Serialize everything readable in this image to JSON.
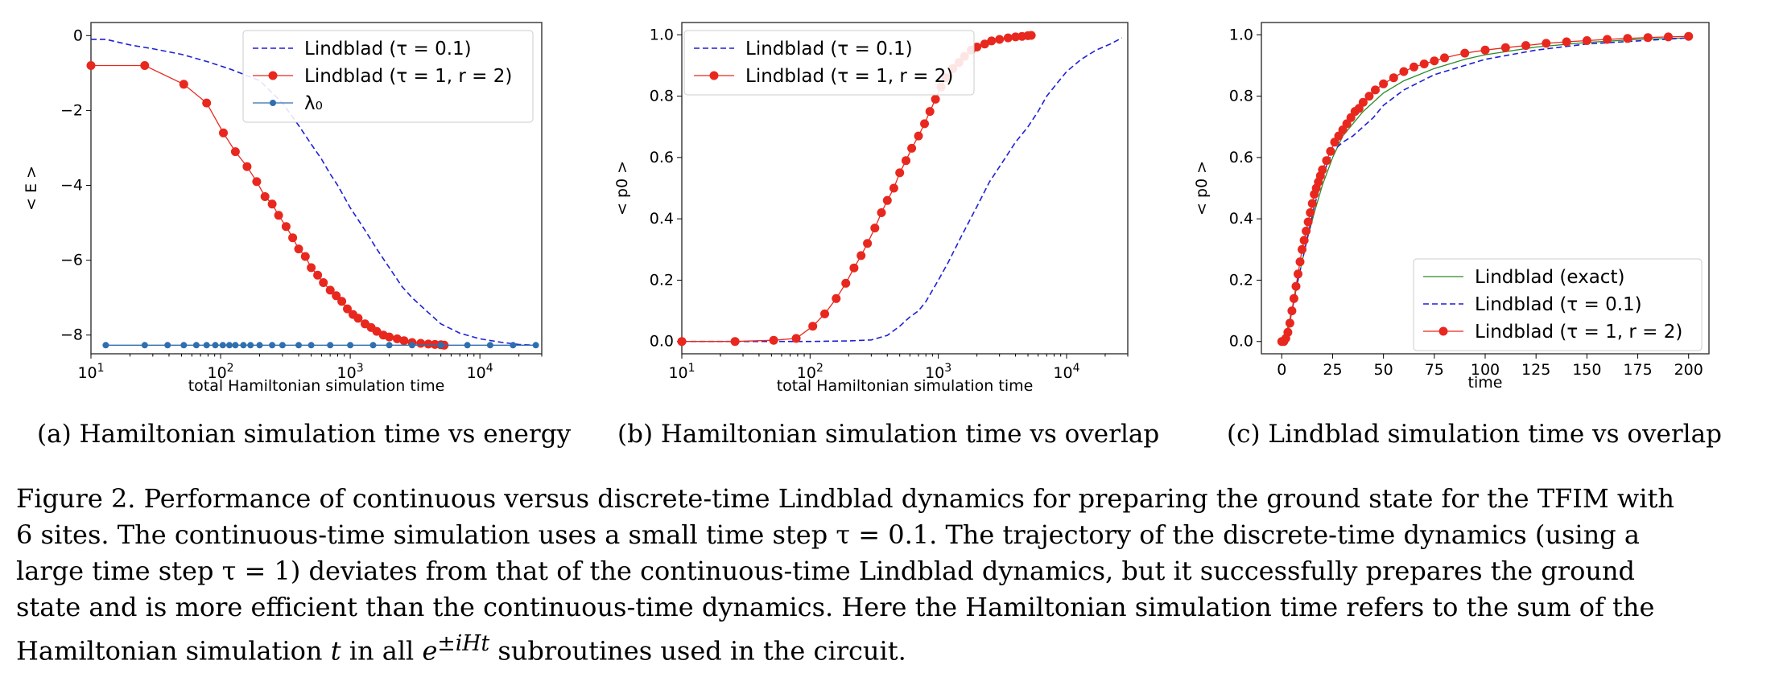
{
  "colors": {
    "red": "#e8281e",
    "blue": "#1f1fd6",
    "steel": "#2f6faf",
    "green": "#2a8a2a",
    "frame": "#333333"
  },
  "panels": [
    {
      "id": "a",
      "subcaption": "(a) Hamiltonian simulation time vs energy",
      "xlabel": "total Hamiltonian simulation time",
      "ylabel": "< E >",
      "xticks": [
        {
          "base": "10",
          "exp": "1",
          "v": 10
        },
        {
          "base": "10",
          "exp": "2",
          "v": 100
        },
        {
          "base": "10",
          "exp": "3",
          "v": 1000
        },
        {
          "base": "10",
          "exp": "4",
          "v": 10000
        }
      ],
      "yticks": [
        "0",
        "−2",
        "−4",
        "−6",
        "−8"
      ],
      "legend": [
        {
          "style": "dash-blue",
          "label": "Lindblad (τ = 0.1)"
        },
        {
          "style": "red-marker",
          "label": "Lindblad (τ = 1, r = 2)"
        },
        {
          "style": "steel-marker",
          "label": "λ₀"
        }
      ]
    },
    {
      "id": "b",
      "subcaption": "(b) Hamiltonian simulation time vs overlap",
      "xlabel": "total Hamiltonian simulation time",
      "ylabel": "< p0 >",
      "xticks": [
        {
          "base": "10",
          "exp": "1",
          "v": 10
        },
        {
          "base": "10",
          "exp": "2",
          "v": 100
        },
        {
          "base": "10",
          "exp": "3",
          "v": 1000
        },
        {
          "base": "10",
          "exp": "4",
          "v": 10000
        }
      ],
      "yticks": [
        "0.0",
        "0.2",
        "0.4",
        "0.6",
        "0.8",
        "1.0"
      ],
      "legend": [
        {
          "style": "dash-blue",
          "label": "Lindblad (τ = 0.1)"
        },
        {
          "style": "red-marker",
          "label": "Lindblad (τ = 1, r = 2)"
        }
      ]
    },
    {
      "id": "c",
      "subcaption": "(c) Lindblad simulation time vs overlap",
      "xlabel": "time",
      "ylabel": "< p0 >",
      "xticks": [
        "0",
        "25",
        "50",
        "75",
        "100",
        "125",
        "150",
        "175",
        "200"
      ],
      "yticks": [
        "0.0",
        "0.2",
        "0.4",
        "0.6",
        "0.8",
        "1.0"
      ],
      "legend": [
        {
          "style": "green-line",
          "label": "Lindblad (exact)"
        },
        {
          "style": "dash-blue",
          "label": "Lindblad (τ = 0.1)"
        },
        {
          "style": "red-marker",
          "label": "Lindblad (τ = 1, r = 2)"
        }
      ]
    }
  ],
  "caption": {
    "line1": "Figure 2. Performance of continuous versus discrete-time Lindblad dynamics for preparing the ground state for the TFIM with",
    "line2": "6 sites. The continuous-time simulation uses a small time step τ = 0.1. The trajectory of the discrete-time dynamics (using a",
    "line3": "large time step τ = 1) deviates from that of the continuous-time Lindblad dynamics, but it successfully prepares the ground",
    "line4": "state and is more efficient than the continuous-time dynamics. Here the Hamiltonian simulation time refers to the sum of the",
    "line5a": "Hamiltonian simulation ",
    "line5t": "t",
    "line5b": " in all ",
    "line5e": "e",
    "line5sup": "±iHt",
    "line5c": " subroutines used in the circuit."
  },
  "chart_data": [
    {
      "type": "line",
      "xscale": "log",
      "xlim": [
        10,
        30000
      ],
      "ylim": [
        -8.5,
        0.35
      ],
      "xlabel": "total Hamiltonian simulation time",
      "ylabel": "< E >",
      "series": [
        {
          "name": "Lindblad (τ = 0.1)",
          "style": "dash-blue",
          "x": [
            10,
            13,
            20,
            30,
            50,
            80,
            120,
            200,
            300,
            400,
            500,
            600,
            700,
            800,
            1000,
            1300,
            1600,
            2000,
            2500,
            3000,
            4000,
            5000,
            7000,
            10000,
            15000,
            20000,
            27000
          ],
          "y": [
            -0.1,
            -0.1,
            -0.25,
            -0.35,
            -0.5,
            -0.7,
            -0.9,
            -1.2,
            -1.8,
            -2.4,
            -2.9,
            -3.3,
            -3.7,
            -4.0,
            -4.6,
            -5.2,
            -5.7,
            -6.2,
            -6.7,
            -7.0,
            -7.4,
            -7.7,
            -7.95,
            -8.1,
            -8.2,
            -8.25,
            -8.27
          ]
        },
        {
          "name": "Lindblad (τ = 1, r = 2)",
          "style": "red-marker",
          "x": [
            10,
            26,
            52,
            78,
            105,
            130,
            160,
            190,
            220,
            250,
            280,
            320,
            360,
            400,
            450,
            500,
            560,
            620,
            700,
            780,
            860,
            950,
            1050,
            1150,
            1300,
            1450,
            1600,
            1800,
            2000,
            2300,
            2600,
            3000,
            3500,
            4000,
            4500,
            5000,
            5300
          ],
          "y": [
            -0.8,
            -0.8,
            -1.3,
            -1.8,
            -2.6,
            -3.1,
            -3.5,
            -3.9,
            -4.3,
            -4.5,
            -4.8,
            -5.1,
            -5.4,
            -5.7,
            -5.9,
            -6.2,
            -6.4,
            -6.6,
            -6.8,
            -6.95,
            -7.1,
            -7.3,
            -7.45,
            -7.55,
            -7.7,
            -7.8,
            -7.9,
            -8.0,
            -8.05,
            -8.1,
            -8.15,
            -8.2,
            -8.22,
            -8.24,
            -8.25,
            -8.26,
            -8.27
          ]
        },
        {
          "name": "λ₀",
          "style": "steel-marker",
          "constant": -8.27,
          "x": [
            13,
            26,
            39,
            52,
            65,
            78,
            91,
            104,
            117,
            130,
            150,
            170,
            200,
            250,
            300,
            400,
            500,
            700,
            1000,
            1500,
            2000,
            3000,
            5000,
            8000,
            12000,
            18000,
            27000
          ]
        }
      ]
    },
    {
      "type": "line",
      "xscale": "log",
      "xlim": [
        10,
        30000
      ],
      "ylim": [
        -0.04,
        1.04
      ],
      "xlabel": "total Hamiltonian simulation time",
      "ylabel": "< p0 >",
      "series": [
        {
          "name": "Lindblad (τ = 0.1)",
          "style": "dash-blue",
          "x": [
            10,
            50,
            100,
            200,
            300,
            400,
            500,
            600,
            700,
            800,
            1000,
            1200,
            1500,
            2000,
            2500,
            3000,
            4000,
            5000,
            6000,
            7000,
            8000,
            10000,
            13000,
            17000,
            22000,
            27000
          ],
          "y": [
            0.0,
            0.0,
            0.0,
            0.002,
            0.005,
            0.02,
            0.05,
            0.08,
            0.1,
            0.13,
            0.2,
            0.26,
            0.34,
            0.44,
            0.52,
            0.57,
            0.65,
            0.7,
            0.75,
            0.8,
            0.83,
            0.88,
            0.92,
            0.95,
            0.97,
            0.99
          ]
        },
        {
          "name": "Lindblad (τ = 1, r = 2)",
          "style": "red-marker",
          "x": [
            10,
            26,
            52,
            78,
            105,
            130,
            160,
            190,
            220,
            250,
            280,
            320,
            360,
            400,
            450,
            500,
            560,
            620,
            700,
            780,
            860,
            950,
            1050,
            1150,
            1300,
            1450,
            1600,
            1800,
            2000,
            2300,
            2600,
            3000,
            3500,
            4000,
            4500,
            5000,
            5300
          ],
          "y": [
            0.0,
            0.0,
            0.004,
            0.01,
            0.05,
            0.09,
            0.14,
            0.19,
            0.24,
            0.28,
            0.32,
            0.37,
            0.42,
            0.46,
            0.5,
            0.55,
            0.59,
            0.63,
            0.67,
            0.71,
            0.75,
            0.79,
            0.83,
            0.86,
            0.89,
            0.91,
            0.93,
            0.95,
            0.96,
            0.97,
            0.98,
            0.985,
            0.99,
            0.993,
            0.995,
            0.997,
            0.998
          ]
        }
      ]
    },
    {
      "type": "line",
      "xscale": "linear",
      "xlim": [
        -10,
        210
      ],
      "ylim": [
        -0.04,
        1.04
      ],
      "xlabel": "time",
      "ylabel": "< p0 >",
      "series": [
        {
          "name": "Lindblad (exact)",
          "style": "green-line",
          "x": [
            0,
            2,
            5,
            8,
            12,
            16,
            20,
            25,
            30,
            40,
            50,
            60,
            75,
            90,
            100,
            125,
            150,
            175,
            200
          ],
          "y": [
            0.0,
            0.02,
            0.1,
            0.2,
            0.32,
            0.42,
            0.51,
            0.6,
            0.67,
            0.75,
            0.81,
            0.85,
            0.89,
            0.92,
            0.935,
            0.96,
            0.975,
            0.985,
            0.99
          ]
        },
        {
          "name": "Lindblad (τ = 0.1)",
          "style": "dash-blue",
          "x": [
            0,
            2,
            5,
            8,
            12,
            16,
            20,
            25,
            30,
            35,
            40,
            45,
            50,
            60,
            75,
            90,
            100,
            125,
            150,
            175,
            200
          ],
          "y": [
            0.0,
            0.02,
            0.1,
            0.2,
            0.32,
            0.44,
            0.54,
            0.62,
            0.65,
            0.67,
            0.7,
            0.73,
            0.77,
            0.82,
            0.87,
            0.9,
            0.92,
            0.95,
            0.97,
            0.98,
            0.99
          ]
        },
        {
          "name": "Lindblad (τ = 1, r = 2)",
          "style": "red-marker",
          "x": [
            0,
            1,
            2,
            3,
            4,
            5,
            6,
            7,
            8,
            9,
            10,
            11,
            12,
            13,
            14,
            15,
            16,
            17,
            18,
            19,
            20,
            22,
            24,
            26,
            28,
            30,
            32,
            34,
            36,
            38,
            40,
            43,
            46,
            50,
            55,
            60,
            65,
            70,
            75,
            80,
            90,
            100,
            110,
            120,
            130,
            140,
            150,
            160,
            170,
            180,
            190,
            200
          ],
          "y": [
            0.0,
            0.0,
            0.01,
            0.03,
            0.06,
            0.1,
            0.14,
            0.18,
            0.22,
            0.26,
            0.3,
            0.33,
            0.36,
            0.39,
            0.42,
            0.45,
            0.48,
            0.5,
            0.52,
            0.54,
            0.56,
            0.59,
            0.62,
            0.65,
            0.67,
            0.69,
            0.71,
            0.73,
            0.75,
            0.76,
            0.78,
            0.8,
            0.82,
            0.84,
            0.86,
            0.88,
            0.895,
            0.905,
            0.915,
            0.925,
            0.94,
            0.95,
            0.958,
            0.965,
            0.972,
            0.977,
            0.981,
            0.985,
            0.988,
            0.991,
            0.993,
            0.995
          ]
        }
      ]
    }
  ]
}
